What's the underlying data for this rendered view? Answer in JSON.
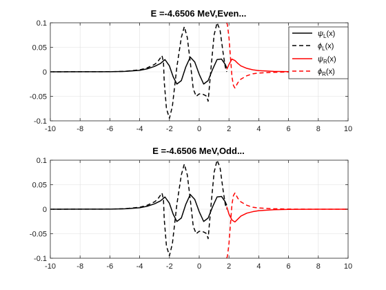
{
  "chart_data": [
    {
      "type": "line",
      "title": "E =-4.6506 MeV,Even...",
      "xlabel": "",
      "ylabel": "",
      "xlim": [
        -10,
        10
      ],
      "ylim": [
        -0.1,
        0.1
      ],
      "xticks": [
        -10,
        -8,
        -6,
        -4,
        -2,
        0,
        2,
        4,
        6,
        8,
        10
      ],
      "yticks": [
        -0.1,
        -0.05,
        0,
        0.05,
        0.1
      ],
      "xtick_labels": [
        "-10",
        "-8",
        "-6",
        "-4",
        "-2",
        "0",
        "2",
        "4",
        "6",
        "8",
        "10"
      ],
      "ytick_labels": [
        "-0.1",
        "-0.05",
        "0",
        "0.05",
        "0.1"
      ],
      "grid": true,
      "legend": {
        "placement": "top-right",
        "entries": [
          {
            "symbol": "ψ",
            "sub": "L",
            "suffix": "(x)",
            "color": "#000000",
            "dash": "solid"
          },
          {
            "symbol": "ϕ",
            "sub": "L",
            "suffix": "(x)",
            "color": "#000000",
            "dash": "dashed"
          },
          {
            "symbol": "ψ",
            "sub": "R",
            "suffix": "(x)",
            "color": "#ff0000",
            "dash": "solid"
          },
          {
            "symbol": "ϕ",
            "sub": "R",
            "suffix": "(x)",
            "color": "#ff0000",
            "dash": "dashed"
          }
        ]
      },
      "series": [
        {
          "name": "ψL(x)",
          "color": "#000000",
          "dash": "solid",
          "x": [
            -10,
            -6,
            -5,
            -4,
            -3.5,
            -3,
            -2.6,
            -2.3,
            -2.0,
            -1.75,
            -1.5,
            -1.2,
            -0.9,
            -0.6,
            -0.3,
            0,
            0.3,
            0.6,
            0.9,
            1.2,
            1.5,
            1.75,
            1.85
          ],
          "y": [
            0,
            0.0002,
            0.0008,
            0.003,
            0.006,
            0.011,
            0.017,
            0.025,
            0.012,
            -0.01,
            -0.025,
            -0.018,
            0.01,
            0.03,
            0.02,
            -0.005,
            -0.025,
            -0.018,
            0.005,
            0.025,
            0.026,
            0.015,
            0.008
          ]
        },
        {
          "name": "ϕL(x)",
          "color": "#000000",
          "dash": "dashed",
          "x": [
            -10,
            -6,
            -5,
            -4,
            -3.5,
            -3,
            -2.8,
            -2.5,
            -2.4,
            -2.35,
            -2.2,
            -2.0,
            -1.8,
            -1.5,
            -1.2,
            -1.0,
            -0.8,
            -0.6,
            -0.4,
            -0.2,
            0,
            0.2,
            0.4,
            0.5,
            0.6,
            0.8,
            1.0,
            1.2,
            1.4,
            1.6,
            1.75,
            1.85
          ],
          "y": [
            0,
            0.0003,
            0.001,
            0.004,
            0.008,
            0.015,
            0.02,
            0.033,
            0.02,
            -0.02,
            -0.075,
            -0.095,
            -0.07,
            0.01,
            0.07,
            0.092,
            0.07,
            0.02,
            -0.035,
            -0.05,
            -0.045,
            -0.045,
            -0.048,
            -0.05,
            -0.06,
            0.01,
            0.075,
            0.1,
            0.085,
            0.04,
            0.01,
            0.0
          ]
        },
        {
          "name": "ψR(x)",
          "color": "#ff0000",
          "dash": "solid",
          "x": [
            1.85,
            2.0,
            2.2,
            2.4,
            2.6,
            2.8,
            3.2,
            3.6,
            4.0,
            5.0,
            6.0,
            7.0,
            8.0,
            10
          ],
          "y": [
            0.005,
            0.015,
            0.026,
            0.023,
            0.017,
            0.012,
            0.007,
            0.004,
            0.0025,
            0.0008,
            0.0003,
            0.0001,
            0,
            0
          ]
        },
        {
          "name": "ϕR(x)",
          "color": "#ff0000",
          "dash": "dashed",
          "x": [
            1.85,
            1.9,
            2.0,
            2.1,
            2.2,
            2.3,
            2.4,
            2.6,
            2.8,
            3.2,
            3.6,
            4.0,
            5.0,
            6.0,
            8.0,
            10
          ],
          "y": [
            0.1,
            0.095,
            0.07,
            0.03,
            -0.01,
            -0.028,
            -0.033,
            -0.022,
            -0.015,
            -0.008,
            -0.004,
            -0.0025,
            -0.001,
            -0.0003,
            0,
            0
          ]
        }
      ]
    },
    {
      "type": "line",
      "title": "E =-4.6506 MeV,Odd...",
      "xlabel": "",
      "ylabel": "",
      "xlim": [
        -10,
        10
      ],
      "ylim": [
        -0.1,
        0.1
      ],
      "xticks": [
        -10,
        -8,
        -6,
        -4,
        -2,
        0,
        2,
        4,
        6,
        8,
        10
      ],
      "yticks": [
        -0.1,
        -0.05,
        0,
        0.05,
        0.1
      ],
      "xtick_labels": [
        "-10",
        "-8",
        "-6",
        "-4",
        "-2",
        "0",
        "2",
        "4",
        "6",
        "8",
        "10"
      ],
      "ytick_labels": [
        "-0.1",
        "-0.05",
        "0",
        "0.05",
        "0.1"
      ],
      "grid": true,
      "series": [
        {
          "name": "ψL(x)",
          "color": "#000000",
          "dash": "solid",
          "x": [
            -10,
            -6,
            -5,
            -4,
            -3.5,
            -3,
            -2.6,
            -2.3,
            -2.0,
            -1.75,
            -1.5,
            -1.2,
            -0.9,
            -0.6,
            -0.3,
            0,
            0.3,
            0.6,
            0.9,
            1.2,
            1.5,
            1.75,
            1.85
          ],
          "y": [
            0,
            0.0002,
            0.0008,
            0.003,
            0.006,
            0.011,
            0.017,
            0.025,
            0.012,
            -0.01,
            -0.025,
            -0.018,
            0.01,
            0.03,
            0.02,
            -0.005,
            -0.025,
            -0.018,
            0.005,
            0.025,
            0.026,
            0.015,
            0.008
          ]
        },
        {
          "name": "ϕL(x)",
          "color": "#000000",
          "dash": "dashed",
          "x": [
            -10,
            -6,
            -5,
            -4,
            -3.5,
            -3,
            -2.8,
            -2.5,
            -2.4,
            -2.35,
            -2.2,
            -2.0,
            -1.8,
            -1.5,
            -1.2,
            -1.0,
            -0.8,
            -0.6,
            -0.4,
            -0.2,
            0,
            0.2,
            0.4,
            0.5,
            0.6,
            0.8,
            1.0,
            1.2,
            1.4,
            1.6,
            1.75,
            1.85
          ],
          "y": [
            0,
            0.0003,
            0.001,
            0.004,
            0.008,
            0.015,
            0.02,
            0.033,
            0.02,
            -0.02,
            -0.075,
            -0.095,
            -0.07,
            0.01,
            0.07,
            0.092,
            0.07,
            0.02,
            -0.035,
            -0.05,
            -0.045,
            -0.045,
            -0.048,
            -0.05,
            -0.06,
            0.01,
            0.075,
            0.1,
            0.085,
            0.04,
            0.01,
            0.0
          ]
        },
        {
          "name": "ψR(x)",
          "color": "#ff0000",
          "dash": "solid",
          "x": [
            1.85,
            2.0,
            2.2,
            2.4,
            2.6,
            2.8,
            3.2,
            3.6,
            4.0,
            5.0,
            6.0,
            7.0,
            8.0,
            10
          ],
          "y": [
            0.005,
            -0.01,
            -0.022,
            -0.026,
            -0.02,
            -0.014,
            -0.008,
            -0.005,
            -0.003,
            -0.001,
            -0.0003,
            -0.0001,
            0,
            0
          ]
        },
        {
          "name": "ϕR(x)",
          "color": "#ff0000",
          "dash": "dashed",
          "x": [
            1.85,
            1.9,
            2.0,
            2.1,
            2.2,
            2.3,
            2.4,
            2.6,
            2.8,
            3.2,
            3.6,
            4.0,
            5.0,
            6.0,
            8.0,
            10
          ],
          "y": [
            -0.1,
            -0.095,
            -0.07,
            -0.03,
            0.01,
            0.028,
            0.033,
            0.022,
            0.015,
            0.008,
            0.004,
            0.0025,
            0.001,
            0.0003,
            0,
            0
          ]
        }
      ]
    }
  ]
}
